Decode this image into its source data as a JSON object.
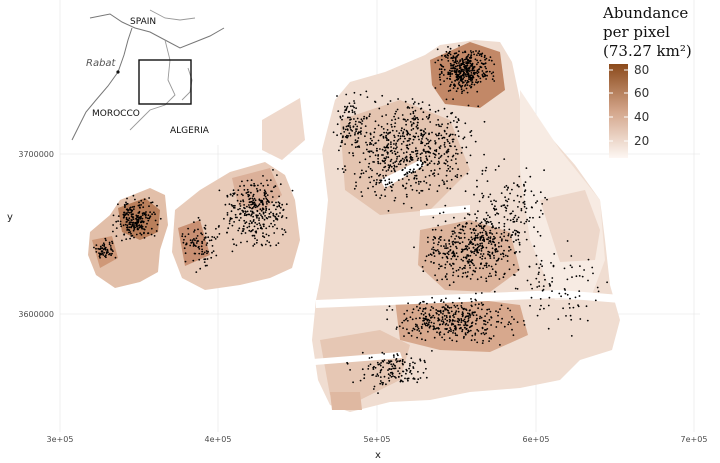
{
  "map": {
    "x_axis_label": "x",
    "y_axis_label": "y",
    "x_ticks": [
      "3e+05",
      "4e+05",
      "5e+05",
      "6e+05",
      "7e+05"
    ],
    "y_ticks": [
      "3600000",
      "3700000"
    ],
    "legend": {
      "title_line1": "Abundance",
      "title_line2": "per pixel",
      "title_line3": "(73.27 km²)",
      "ticks": [
        "80",
        "60",
        "40",
        "20"
      ],
      "color_high": "#8b4a1b",
      "color_mid": "#d3a58a",
      "color_low": "#fdf7f3"
    },
    "inset": {
      "labels": [
        "SPAIN",
        "Rabat",
        "MOROCCO",
        "ALGERIA"
      ]
    },
    "colors": {
      "point": "#000000",
      "grid": "#ebebeb"
    }
  }
}
